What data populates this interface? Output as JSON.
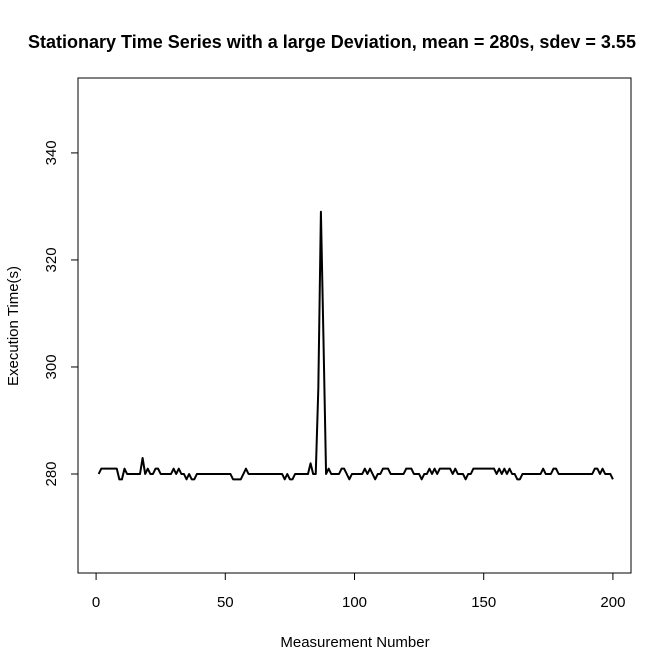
{
  "chart_data": {
    "type": "line",
    "title": "Stationary Time Series with a large Deviation, mean = 280s, sdev = 3.55",
    "xlabel": "Measurement Number",
    "ylabel": "Execution Time(s)",
    "xlim": [
      -7,
      207
    ],
    "ylim": [
      261.5,
      354
    ],
    "x_ticks": [
      0,
      50,
      100,
      150,
      200
    ],
    "y_ticks": [
      280,
      300,
      320,
      340
    ],
    "grid": false,
    "series": [
      {
        "color": "#000000",
        "values": [
          280,
          281,
          281,
          281,
          281,
          281,
          281,
          281,
          279,
          279,
          281,
          280,
          280,
          280,
          280,
          280,
          280,
          283,
          280,
          281,
          280,
          280,
          281,
          281,
          280,
          280,
          280,
          280,
          280,
          281,
          280,
          281,
          280,
          280,
          279,
          280,
          279,
          279,
          280,
          280,
          280,
          280,
          280,
          280,
          280,
          280,
          280,
          280,
          280,
          280,
          280,
          280,
          279,
          279,
          279,
          279,
          280,
          281,
          280,
          280,
          280,
          280,
          280,
          280,
          280,
          280,
          280,
          280,
          280,
          280,
          280,
          280,
          279,
          280,
          279,
          279,
          280,
          280,
          280,
          280,
          280,
          280,
          282,
          280,
          280,
          296,
          329,
          305,
          280,
          281,
          280,
          280,
          280,
          280,
          281,
          281,
          280,
          279,
          280,
          280,
          280,
          280,
          280,
          281,
          280,
          281,
          280,
          279,
          280,
          280,
          281,
          281,
          281,
          280,
          280,
          280,
          280,
          280,
          280,
          281,
          281,
          281,
          280,
          280,
          280,
          279,
          280,
          280,
          281,
          280,
          281,
          280,
          281,
          281,
          281,
          281,
          281,
          280,
          281,
          280,
          280,
          280,
          279,
          280,
          280,
          281,
          281,
          281,
          281,
          281,
          281,
          281,
          281,
          281,
          280,
          281,
          280,
          281,
          280,
          281,
          280,
          280,
          279,
          279,
          280,
          280,
          280,
          280,
          280,
          280,
          280,
          280,
          281,
          280,
          280,
          280,
          281,
          281,
          280,
          280,
          280,
          280,
          280,
          280,
          280,
          280,
          280,
          280,
          280,
          280,
          280,
          280,
          281,
          281,
          280,
          281,
          280,
          280,
          280,
          279
        ]
      }
    ]
  }
}
